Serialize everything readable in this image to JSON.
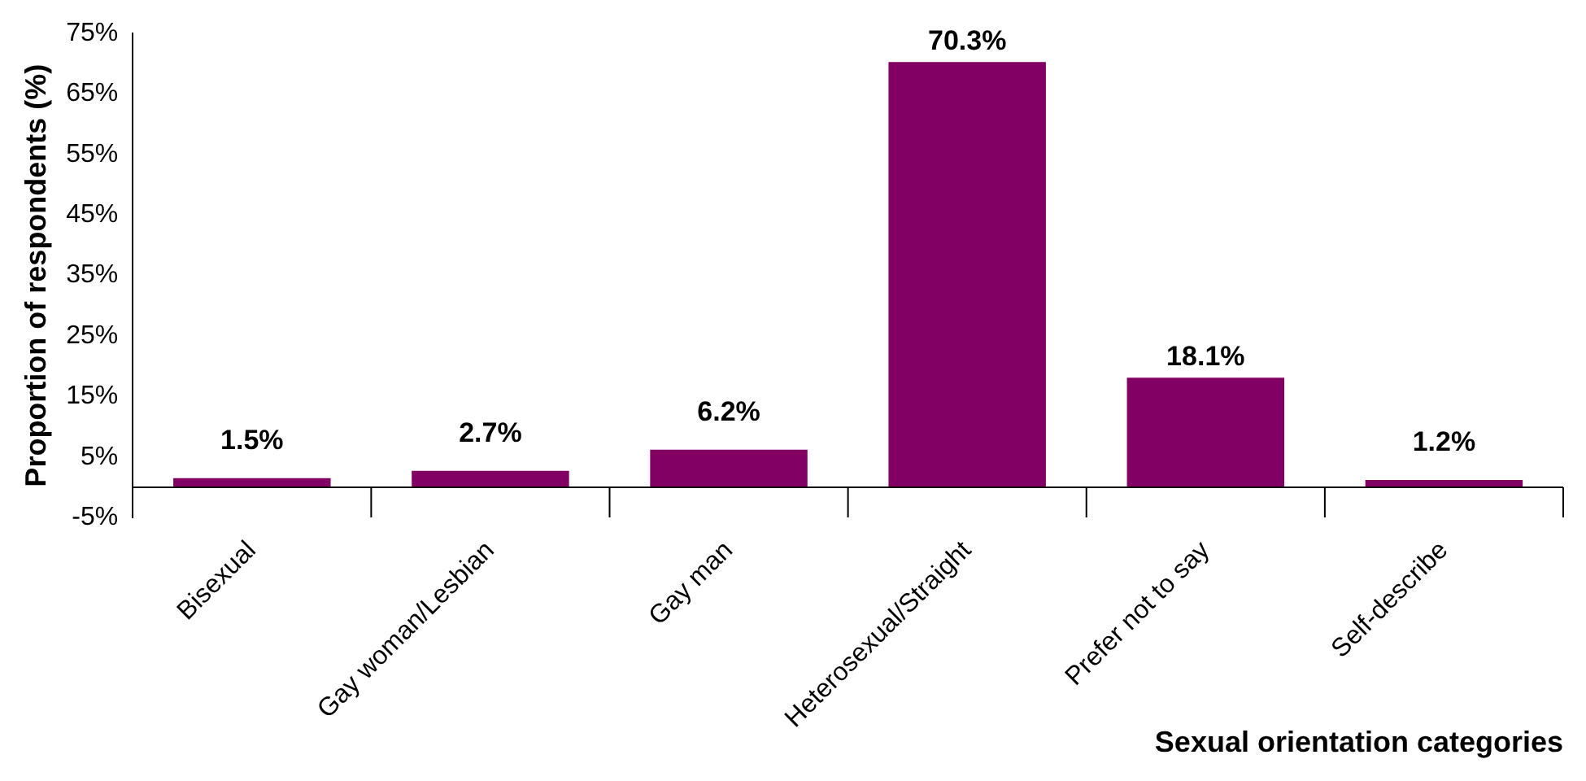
{
  "chart_data": {
    "type": "bar",
    "categories": [
      "Bisexual",
      "Gay woman/Lesbian",
      "Gay man",
      "Heterosexual/Straight",
      "Prefer not to say",
      "Self-describe"
    ],
    "values": [
      1.5,
      2.7,
      6.2,
      70.3,
      18.1,
      1.2
    ],
    "value_labels": [
      "1.5%",
      "2.7%",
      "6.2%",
      "70.3%",
      "18.1%",
      "1.2%"
    ],
    "color": "#820063",
    "xlabel": "Sexual orientation categories",
    "ylabel": "Proportion of respondents (%)",
    "ylim": [
      -5,
      75
    ],
    "yticks": [
      {
        "value": -5,
        "label": "-5%"
      },
      {
        "value": 5,
        "label": "5%"
      },
      {
        "value": 15,
        "label": "15%"
      },
      {
        "value": 25,
        "label": "25%"
      },
      {
        "value": 35,
        "label": "35%"
      },
      {
        "value": 45,
        "label": "45%"
      },
      {
        "value": 55,
        "label": "55%"
      },
      {
        "value": 65,
        "label": "65%"
      },
      {
        "value": 75,
        "label": "75%"
      }
    ],
    "legend": false
  }
}
